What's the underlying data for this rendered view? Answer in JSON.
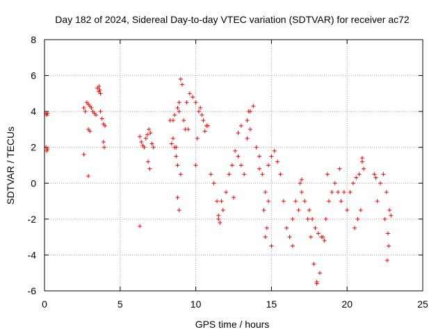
{
  "chart_data": {
    "type": "scatter",
    "title": "Day 182 of 2024, Sidereal Day-to-day VTEC variation (SDTVAR) for receiver ac72",
    "xlabel": "GPS time / hours",
    "ylabel": "SDTVAR / TECUs",
    "xlim": [
      0,
      25
    ],
    "ylim": [
      -6,
      8
    ],
    "xticks": [
      0,
      5,
      10,
      15,
      20,
      25
    ],
    "yticks": [
      -6,
      -4,
      -2,
      0,
      2,
      4,
      6,
      8
    ],
    "grid": true,
    "marker": "+",
    "color": "#ff0000",
    "series": [
      {
        "name": "SDTVAR",
        "x": [
          0.1,
          0.15,
          0.2,
          0.1,
          0.15,
          0.2,
          2.6,
          2.7,
          2.8,
          2.9,
          3.0,
          3.1,
          3.2,
          3.3,
          3.4,
          3.5,
          3.6,
          3.7,
          3.8,
          3.9,
          4.0,
          2.9,
          3.0,
          3.6,
          3.7,
          3.65,
          3.9,
          3.95,
          2.6,
          2.9,
          6.3,
          6.4,
          6.5,
          6.6,
          6.7,
          6.8,
          6.9,
          7.0,
          7.1,
          7.2,
          6.3,
          6.85,
          6.95,
          8.3,
          8.5,
          8.7,
          8.8,
          8.9,
          9.0,
          9.1,
          9.2,
          9.4,
          9.6,
          9.8,
          10.0,
          10.2,
          10.4,
          10.6,
          10.8,
          8.8,
          8.9,
          9.0,
          8.6,
          8.7,
          9.5,
          10.1,
          10.3,
          9.3,
          8.4,
          8.5,
          8.6,
          8.8,
          8.9,
          10.5,
          10.7,
          10.0,
          11.0,
          11.2,
          11.4,
          11.5,
          11.6,
          11.8,
          12.0,
          12.2,
          12.4,
          12.6,
          12.8,
          13.0,
          13.2,
          13.4,
          13.6,
          13.8,
          14.0,
          14.2,
          14.4,
          14.6,
          14.8,
          15.0,
          15.2,
          15.4,
          15.6,
          13.5,
          13.4,
          13.6,
          12.5,
          14.5,
          14.7,
          15.0,
          14.8,
          12.8,
          11.5,
          11.7,
          13.0,
          14.2,
          14.6,
          15.8,
          16.0,
          16.2,
          16.4,
          16.6,
          16.8,
          17.0,
          17.2,
          17.4,
          17.6,
          17.8,
          18.0,
          18.2,
          18.4,
          18.6,
          18.8,
          19.0,
          19.2,
          19.4,
          19.6,
          19.8,
          17.5,
          17.7,
          17.9,
          18.1,
          18.3,
          18.0,
          18.5,
          16.4,
          16.9,
          18.7,
          19.5,
          17.0,
          20.0,
          20.2,
          20.4,
          20.6,
          20.8,
          21.0,
          20.5,
          20.7,
          20.9,
          21.1,
          21.0,
          21.8,
          22.0,
          22.2,
          22.4,
          22.6,
          22.8,
          22.7,
          22.75,
          22.65,
          21.9,
          22.5,
          22.9
        ],
        "y": [
          3.9,
          3.8,
          3.9,
          2.0,
          1.8,
          1.9,
          4.2,
          4.0,
          4.5,
          4.4,
          4.3,
          4.2,
          4.0,
          3.9,
          3.8,
          5.3,
          5.4,
          4.0,
          3.6,
          3.3,
          3.2,
          3.0,
          2.9,
          5.1,
          5.0,
          5.2,
          2.3,
          2.0,
          1.6,
          0.4,
          2.6,
          2.3,
          2.1,
          2.0,
          2.5,
          2.7,
          3.0,
          2.8,
          2.2,
          2.0,
          -2.4,
          1.2,
          0.8,
          3.5,
          2.5,
          2.0,
          1.0,
          4.5,
          5.8,
          5.5,
          3.5,
          4.5,
          5.0,
          4.8,
          4.5,
          4.0,
          3.8,
          2.9,
          3.2,
          -0.8,
          -1.5,
          0.5,
          2.0,
          1.5,
          3.0,
          2.5,
          4.2,
          3.0,
          2.2,
          3.5,
          3.8,
          4.2,
          4.0,
          3.5,
          3.2,
          1.0,
          0.5,
          0.0,
          -1.0,
          -2.0,
          -2.2,
          -1.5,
          -0.5,
          0.5,
          1.0,
          1.8,
          1.5,
          1.0,
          0.5,
          2.5,
          4.0,
          4.3,
          2.0,
          1.5,
          0.5,
          -0.5,
          1.0,
          1.5,
          1.8,
          1.2,
          0.5,
          4.0,
          3.5,
          3.0,
          -0.8,
          -1.5,
          -2.5,
          -3.5,
          -1.0,
          2.8,
          -1.8,
          -1.0,
          3.2,
          0.8,
          -3.0,
          -1.0,
          -2.5,
          -3.0,
          -2.0,
          -1.0,
          -1.5,
          -0.5,
          -1.0,
          -2.0,
          -3.0,
          -4.5,
          -5.5,
          -5.0,
          -3.0,
          -2.0,
          -1.0,
          -0.5,
          0.0,
          -0.5,
          -1.0,
          -0.5,
          -1.5,
          -2.0,
          -2.5,
          -2.8,
          -3.0,
          -5.6,
          -3.2,
          -3.5,
          0.0,
          0.5,
          0.8,
          0.2,
          -1.5,
          -0.5,
          0.0,
          0.3,
          0.5,
          1.2,
          -2.5,
          -2.0,
          -1.5,
          0.8,
          1.4,
          0.5,
          -1.0,
          0.0,
          0.5,
          -0.5,
          -1.5,
          -2.8,
          -3.5,
          -4.3,
          0.3,
          -2.0,
          -1.8
        ]
      }
    ]
  }
}
